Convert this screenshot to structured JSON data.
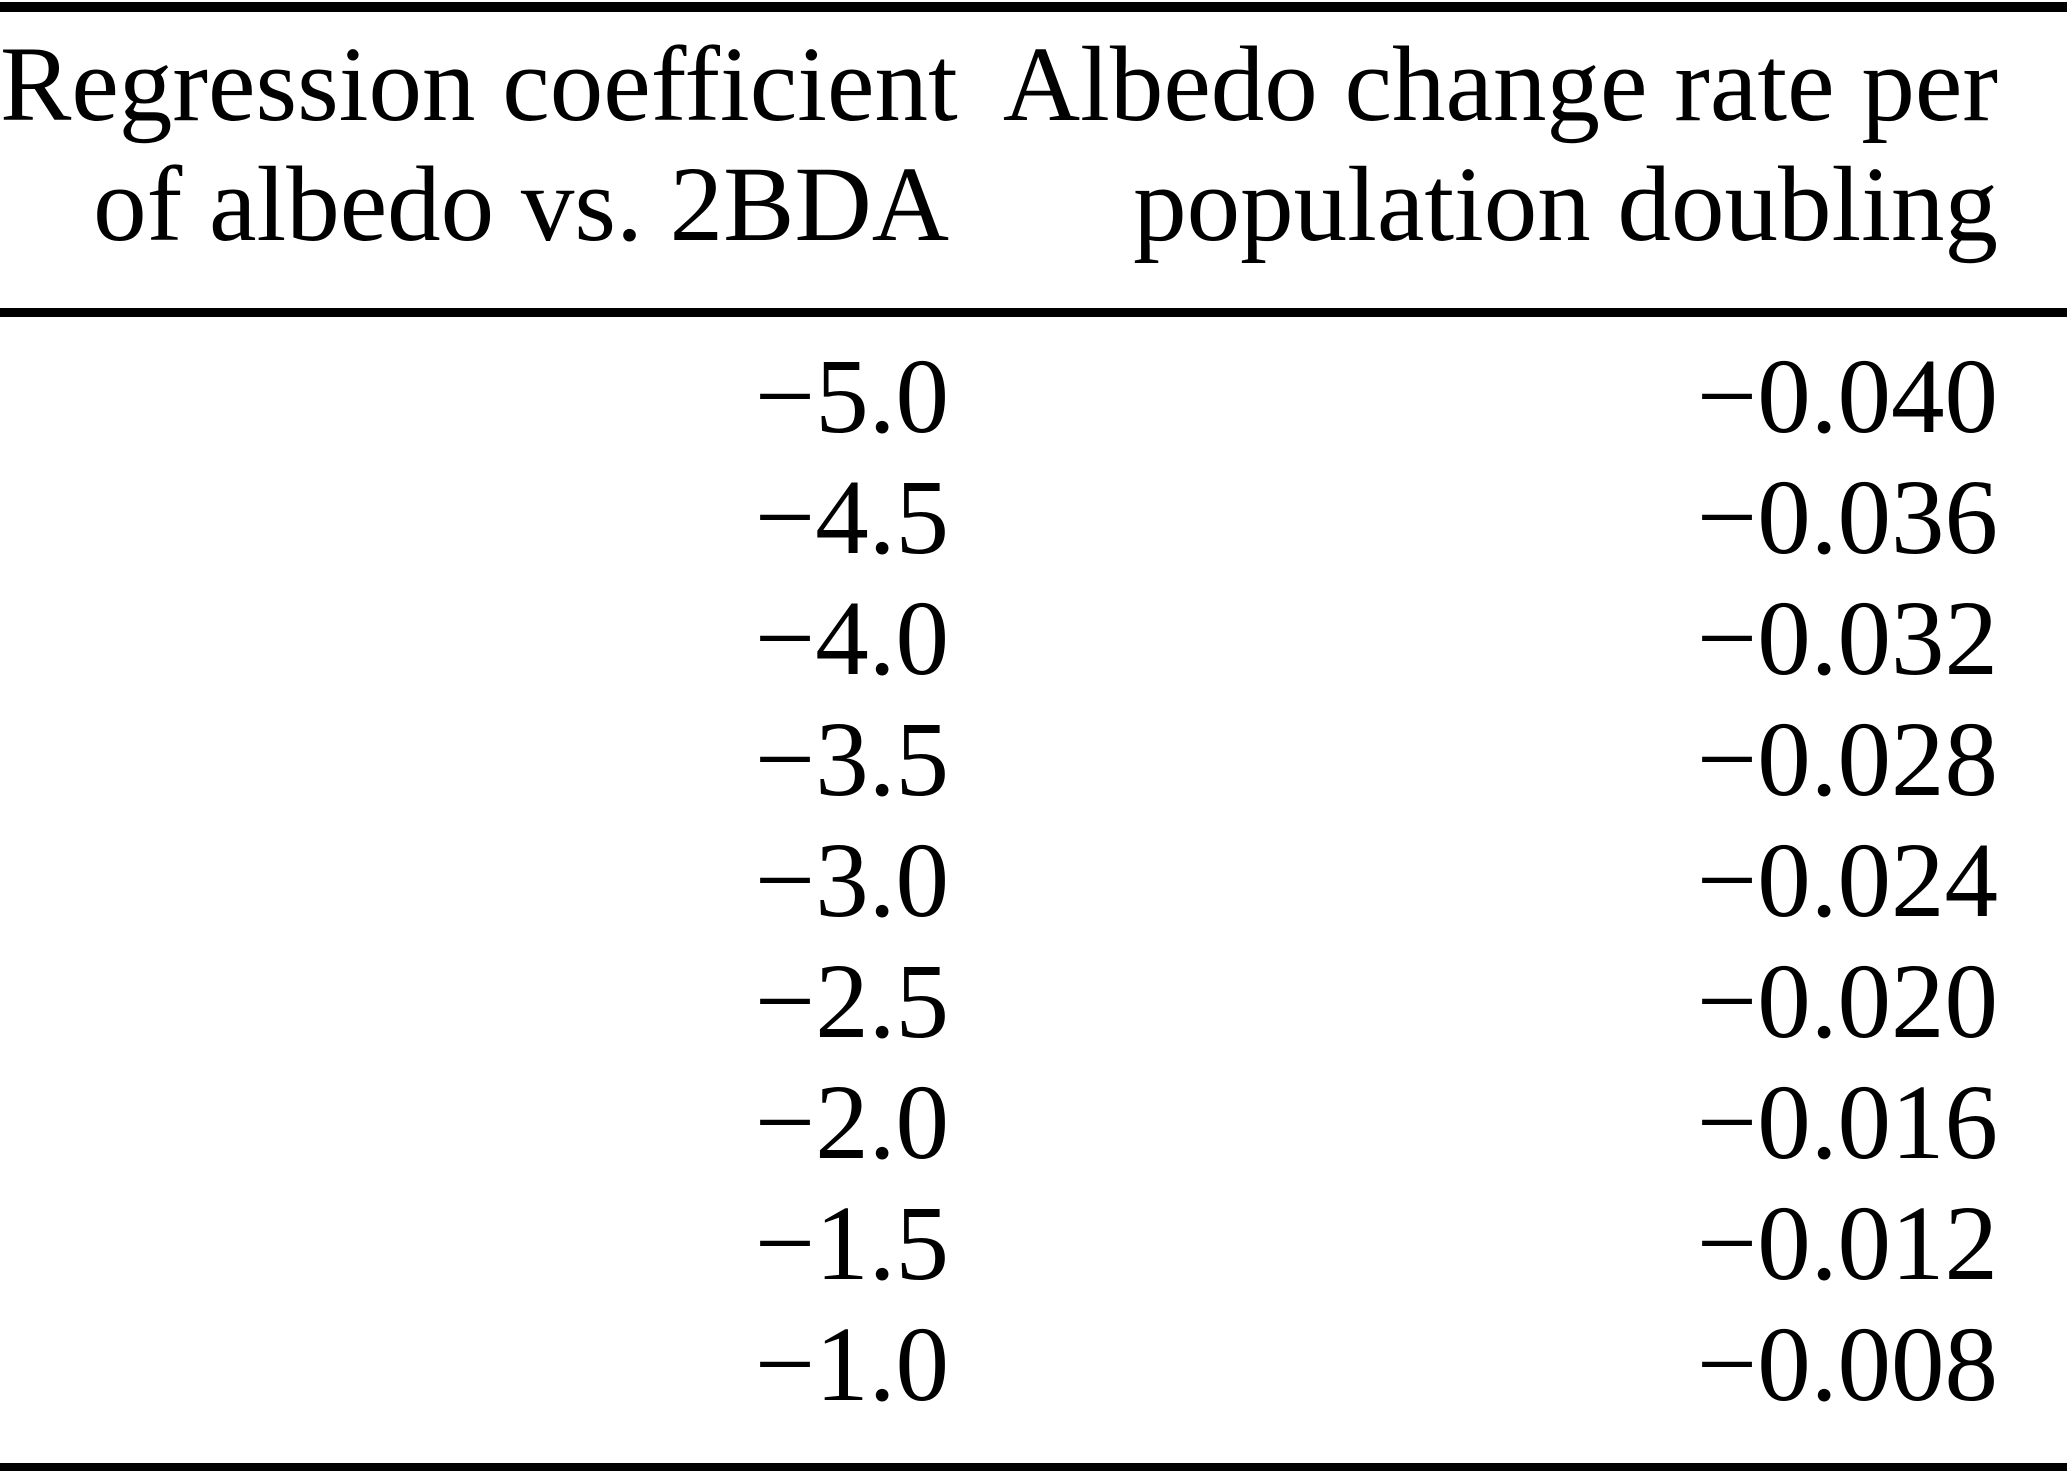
{
  "table": {
    "header": {
      "col1_line1": "Regression coefficient",
      "col1_line2": "of albedo vs. 2BDA",
      "col2_line1": "Albedo change rate per",
      "col2_line2": "population doubling"
    },
    "rows": [
      {
        "coef": "−5.0",
        "rate": "−0.040"
      },
      {
        "coef": "−4.5",
        "rate": "−0.036"
      },
      {
        "coef": "−4.0",
        "rate": "−0.032"
      },
      {
        "coef": "−3.5",
        "rate": "−0.028"
      },
      {
        "coef": "−3.0",
        "rate": "−0.024"
      },
      {
        "coef": "−2.5",
        "rate": "−0.020"
      },
      {
        "coef": "−2.0",
        "rate": "−0.016"
      },
      {
        "coef": "−1.5",
        "rate": "−0.012"
      },
      {
        "coef": "−1.0",
        "rate": "−0.008"
      }
    ]
  },
  "colors": {
    "text": "#000000",
    "background": "#ffffff",
    "rule": "#000000"
  },
  "chart_data": {
    "type": "table",
    "columns": [
      "Regression coefficient of albedo vs. 2BDA",
      "Albedo change rate per population doubling"
    ],
    "rows": [
      [
        -5.0,
        -0.04
      ],
      [
        -4.5,
        -0.036
      ],
      [
        -4.0,
        -0.032
      ],
      [
        -3.5,
        -0.028
      ],
      [
        -3.0,
        -0.024
      ],
      [
        -2.5,
        -0.02
      ],
      [
        -2.0,
        -0.016
      ],
      [
        -1.5,
        -0.012
      ],
      [
        -1.0,
        -0.008
      ]
    ]
  }
}
